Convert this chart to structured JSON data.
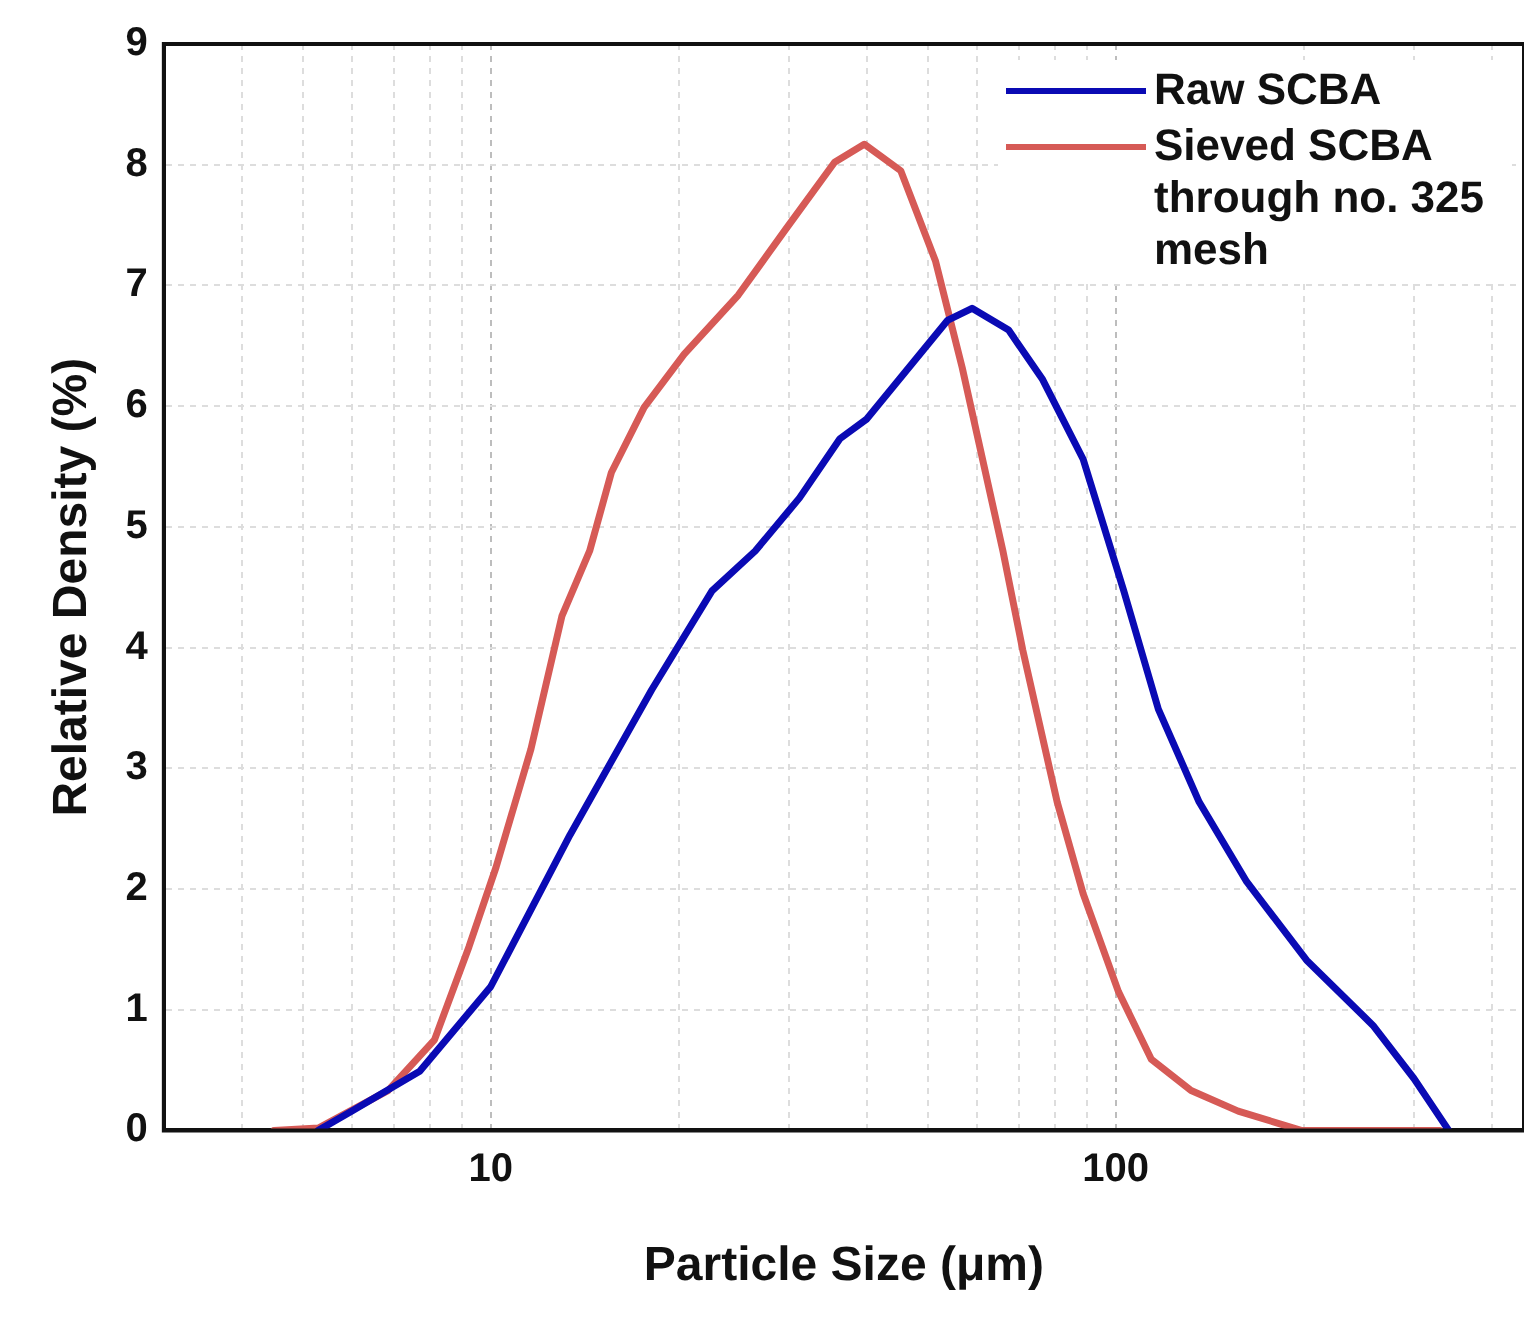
{
  "chart_data": {
    "type": "line",
    "xlabel": "Particle Size (μm)",
    "ylabel": "Relative Density (%)",
    "log": "x",
    "xlim": [
      3,
      450
    ],
    "ylim": [
      0,
      9
    ],
    "xticks": [
      {
        "value": 3,
        "label": null
      },
      {
        "value": 4,
        "label": null
      },
      {
        "value": 5,
        "label": null
      },
      {
        "value": 6,
        "label": null
      },
      {
        "value": 7,
        "label": null
      },
      {
        "value": 8,
        "label": null
      },
      {
        "value": 9,
        "label": null
      },
      10,
      {
        "value": 20,
        "label": null
      },
      {
        "value": 30,
        "label": null
      },
      {
        "value": 40,
        "label": null
      },
      {
        "value": 50,
        "label": null
      },
      {
        "value": 60,
        "label": null
      },
      {
        "value": 70,
        "label": null
      },
      {
        "value": 80,
        "label": null
      },
      {
        "value": 90,
        "label": null
      },
      100,
      {
        "value": 200,
        "label": null
      },
      {
        "value": 300,
        "label": null
      },
      {
        "value": 400,
        "label": null
      }
    ],
    "yticks": [
      0,
      1,
      2,
      3,
      4,
      5,
      6,
      7,
      8,
      9
    ],
    "grid": true,
    "legend": "top right",
    "marker": "none",
    "line_style": "solid",
    "series": [
      {
        "name": "Raw SCBA",
        "color": "#0a0ab4",
        "x": [
          5.3,
          6.0,
          7.7,
          10,
          13.4,
          18.1,
          22.6,
          26.5,
          31.2,
          36.2,
          39.9,
          53.8,
          58.9,
          67.4,
          76.4,
          88.7,
          103,
          117,
          136,
          162,
          202,
          258,
          300,
          341
        ],
        "values": [
          0,
          0.16,
          0.49,
          1.19,
          2.45,
          3.65,
          4.47,
          4.8,
          5.24,
          5.73,
          5.89,
          6.71,
          6.81,
          6.63,
          6.22,
          5.56,
          4.47,
          3.49,
          2.72,
          2.06,
          1.41,
          0.87,
          0.43,
          0
        ]
      },
      {
        "name": "Sieved SCBA through no. 325 mesh",
        "color": "#d65a56",
        "x": [
          4.5,
          5.3,
          6.85,
          8.13,
          9.23,
          10.2,
          11.6,
          13.0,
          14.4,
          15.6,
          17.6,
          20.4,
          24.9,
          29.6,
          35.5,
          39.6,
          45.3,
          51.5,
          56.8,
          66.0,
          71.0,
          80.6,
          88.7,
          101,
          114,
          132,
          157,
          198,
          330
        ],
        "values": [
          0,
          0.02,
          0.33,
          0.75,
          1.52,
          2.18,
          3.16,
          4.26,
          4.8,
          5.45,
          5.99,
          6.43,
          6.92,
          7.46,
          8.02,
          8.17,
          7.95,
          7.2,
          6.32,
          4.8,
          3.98,
          2.72,
          1.96,
          1.15,
          0.59,
          0.33,
          0.16,
          0,
          0
        ]
      }
    ]
  }
}
